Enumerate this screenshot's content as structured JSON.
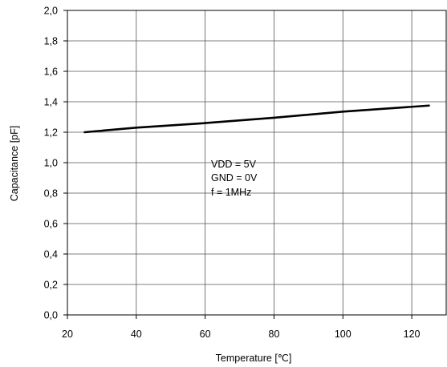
{
  "chart_data": {
    "type": "line",
    "title": "",
    "xlabel": "Temperature [℃]",
    "ylabel": "Capacitance [pF]",
    "xlim": [
      20,
      130
    ],
    "ylim": [
      0.0,
      2.0
    ],
    "x_ticks": [
      20,
      40,
      60,
      80,
      100,
      120
    ],
    "x_tick_labels": [
      "20",
      "40",
      "60",
      "80",
      "100",
      "120"
    ],
    "y_ticks": [
      0.0,
      0.2,
      0.4,
      0.6,
      0.8,
      1.0,
      1.2,
      1.4,
      1.6,
      1.8,
      2.0
    ],
    "y_tick_labels": [
      "0,0",
      "0,2",
      "0,4",
      "0,6",
      "0,8",
      "1,0",
      "1,2",
      "1,4",
      "1,6",
      "1,8",
      "2,0"
    ],
    "grid": true,
    "series": [
      {
        "name": "",
        "color": "#000000",
        "x": [
          25,
          40,
          60,
          80,
          100,
          125
        ],
        "y": [
          1.2,
          1.23,
          1.26,
          1.295,
          1.335,
          1.375
        ]
      }
    ],
    "annotations": [
      "VDD = 5V",
      "GND = 0V",
      "f = 1MHz"
    ]
  }
}
